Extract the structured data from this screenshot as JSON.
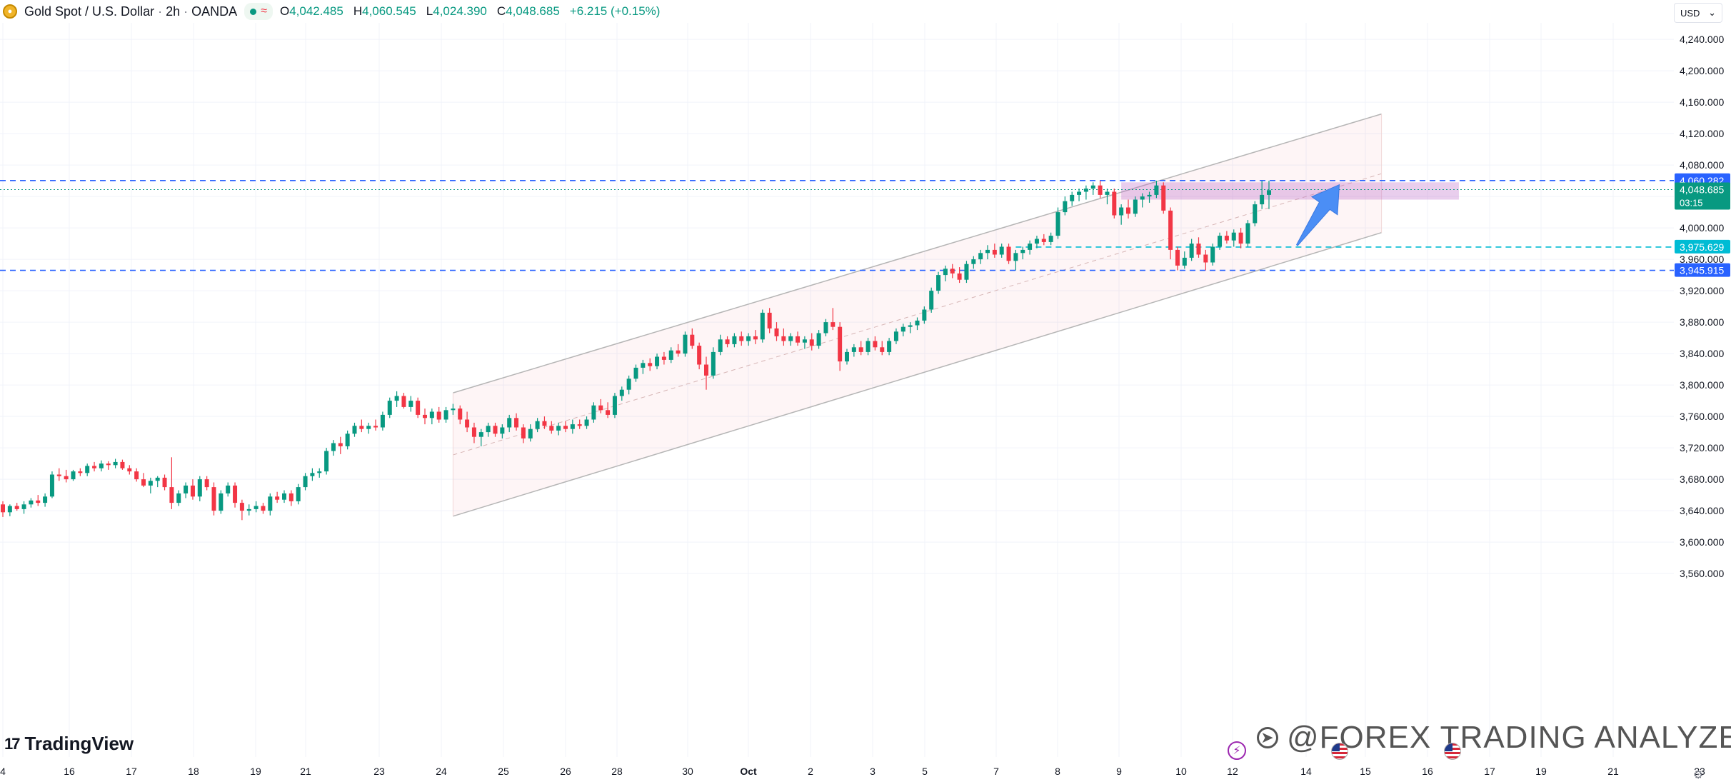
{
  "header": {
    "symbol": "Gold Spot / U.S. Dollar",
    "sep1": "/",
    "interval": "2h",
    "broker": "OANDA",
    "wave_glyph": "≈",
    "open_label": "O",
    "open": "4,042.485",
    "high_label": "H",
    "high": "4,060.545",
    "low_label": "L",
    "low": "4,024.390",
    "close_label": "C",
    "close": "4,048.685",
    "change": "+6.215 (+0.15%)"
  },
  "currency_selector": {
    "label": "USD",
    "icon": "chevron-down-icon"
  },
  "brand": {
    "name": "TradingView",
    "mark": "17"
  },
  "watermark": {
    "text": "@FOREX TRADING ANALYZERIZ",
    "icon": "telegram-icon"
  },
  "colors": {
    "up": "#089981",
    "down": "#f23645",
    "level_line": "#2962ff",
    "cyan_line": "#00bcd4",
    "zone": "#c68fe0",
    "channel": "#f6d0d0",
    "arrow": "#4b8ef5"
  },
  "chart_data": {
    "type": "candlestick",
    "title": "",
    "ylabel": "",
    "xlabel": "",
    "ylim": [
      3531,
      4269
    ],
    "y_ticks": [
      3560,
      3600,
      3640,
      3680,
      3720,
      3760,
      3800,
      3840,
      3880,
      3920,
      3960,
      4000,
      4040,
      4080,
      4120,
      4160,
      4200,
      4240
    ],
    "y_tick_labels": [
      "3,560.000",
      "3,600.000",
      "3,640.000",
      "3,680.000",
      "3,720.000",
      "3,760.000",
      "3,800.000",
      "3,840.000",
      "3,880.000",
      "3,920.000",
      "3,960.000",
      "4,000.000",
      "",
      "4,080.000",
      "4,120.000",
      "4,160.000",
      "4,200.000",
      "4,240.000"
    ],
    "x_axis_labels": [
      "4",
      "16",
      "17",
      "18",
      "19",
      "21",
      "23",
      "24",
      "25",
      "26",
      "28",
      "30",
      "Oct",
      "2",
      "3",
      "5",
      "7",
      "8",
      "9",
      "10",
      "12",
      "14",
      "15",
      "16",
      "17",
      "19",
      "21",
      "23"
    ],
    "grid": true,
    "legend": "none",
    "price_labels": [
      {
        "value": 4060.282,
        "text": "4,060.282",
        "color": "#2962ff"
      },
      {
        "value": 4048.685,
        "text": "4,048.685",
        "sub": "03:15",
        "color": "#089981"
      },
      {
        "value": 3975.629,
        "text": "3,975.629",
        "color": "#00bcd4"
      },
      {
        "value": 3945.915,
        "text": "3,945.915",
        "color": "#2962ff"
      }
    ],
    "horizontal_levels": [
      {
        "value": 4060.282,
        "style": "dashed",
        "color": "#2962ff"
      },
      {
        "value": 4048.685,
        "style": "dotted",
        "color": "#089981"
      },
      {
        "value": 3975.629,
        "style": "dashed",
        "color": "#00bcd4",
        "from_index": 144
      },
      {
        "value": 3945.915,
        "style": "dashed",
        "color": "#2962ff"
      }
    ],
    "channel": {
      "upper_start": [
        64,
        3790
      ],
      "upper_end": [
        196,
        4145
      ],
      "lower_start": [
        64,
        3633
      ],
      "lower_end": [
        196,
        3994
      ],
      "mid_start": [
        64,
        3711
      ],
      "mid_end": [
        196,
        4069
      ]
    },
    "resistance_zone": {
      "from_index": 159,
      "to_index": 207,
      "top": 4058,
      "bottom": 4036
    },
    "projection_arrow": {
      "from": [
        184,
        3978
      ],
      "to": [
        190,
        4055
      ]
    },
    "candles": [
      [
        3648,
        3652,
        3632,
        3638
      ],
      [
        3638,
        3648,
        3633,
        3646
      ],
      [
        3646,
        3650,
        3640,
        3642
      ],
      [
        3642,
        3652,
        3636,
        3648
      ],
      [
        3648,
        3656,
        3644,
        3653
      ],
      [
        3653,
        3660,
        3646,
        3650
      ],
      [
        3650,
        3662,
        3645,
        3658
      ],
      [
        3658,
        3690,
        3656,
        3686
      ],
      [
        3686,
        3694,
        3678,
        3684
      ],
      [
        3684,
        3692,
        3676,
        3680
      ],
      [
        3680,
        3692,
        3678,
        3690
      ],
      [
        3690,
        3694,
        3684,
        3688
      ],
      [
        3688,
        3700,
        3684,
        3697
      ],
      [
        3697,
        3702,
        3690,
        3694
      ],
      [
        3694,
        3704,
        3690,
        3700
      ],
      [
        3700,
        3703,
        3692,
        3698
      ],
      [
        3698,
        3706,
        3694,
        3702
      ],
      [
        3702,
        3705,
        3692,
        3694
      ],
      [
        3694,
        3698,
        3686,
        3690
      ],
      [
        3690,
        3694,
        3677,
        3680
      ],
      [
        3680,
        3688,
        3670,
        3672
      ],
      [
        3672,
        3682,
        3662,
        3678
      ],
      [
        3678,
        3684,
        3670,
        3682
      ],
      [
        3682,
        3686,
        3666,
        3670
      ],
      [
        3670,
        3708,
        3642,
        3650
      ],
      [
        3650,
        3666,
        3646,
        3662
      ],
      [
        3662,
        3676,
        3656,
        3672
      ],
      [
        3672,
        3680,
        3654,
        3658
      ],
      [
        3658,
        3684,
        3652,
        3680
      ],
      [
        3680,
        3684,
        3666,
        3670
      ],
      [
        3670,
        3676,
        3634,
        3640
      ],
      [
        3640,
        3666,
        3636,
        3662
      ],
      [
        3662,
        3676,
        3658,
        3672
      ],
      [
        3672,
        3676,
        3644,
        3650
      ],
      [
        3650,
        3654,
        3628,
        3640
      ],
      [
        3640,
        3648,
        3634,
        3642
      ],
      [
        3642,
        3652,
        3638,
        3646
      ],
      [
        3646,
        3650,
        3636,
        3640
      ],
      [
        3640,
        3662,
        3634,
        3658
      ],
      [
        3658,
        3664,
        3650,
        3654
      ],
      [
        3654,
        3666,
        3650,
        3662
      ],
      [
        3662,
        3666,
        3646,
        3652
      ],
      [
        3652,
        3674,
        3648,
        3670
      ],
      [
        3670,
        3688,
        3666,
        3684
      ],
      [
        3684,
        3694,
        3678,
        3688
      ],
      [
        3688,
        3694,
        3682,
        3690
      ],
      [
        3690,
        3720,
        3686,
        3716
      ],
      [
        3716,
        3730,
        3710,
        3726
      ],
      [
        3726,
        3734,
        3712,
        3722
      ],
      [
        3722,
        3742,
        3718,
        3738
      ],
      [
        3738,
        3752,
        3734,
        3748
      ],
      [
        3748,
        3756,
        3740,
        3744
      ],
      [
        3744,
        3752,
        3738,
        3748
      ],
      [
        3748,
        3756,
        3742,
        3746
      ],
      [
        3746,
        3766,
        3742,
        3762
      ],
      [
        3762,
        3784,
        3758,
        3780
      ],
      [
        3780,
        3792,
        3772,
        3786
      ],
      [
        3786,
        3790,
        3770,
        3772
      ],
      [
        3772,
        3786,
        3766,
        3780
      ],
      [
        3780,
        3784,
        3758,
        3762
      ],
      [
        3762,
        3770,
        3750,
        3758
      ],
      [
        3758,
        3770,
        3750,
        3766
      ],
      [
        3766,
        3772,
        3752,
        3756
      ],
      [
        3756,
        3772,
        3752,
        3768
      ],
      [
        3768,
        3776,
        3762,
        3770
      ],
      [
        3770,
        3774,
        3750,
        3756
      ],
      [
        3756,
        3766,
        3740,
        3746
      ],
      [
        3746,
        3752,
        3726,
        3734
      ],
      [
        3734,
        3744,
        3722,
        3740
      ],
      [
        3740,
        3752,
        3734,
        3748
      ],
      [
        3748,
        3752,
        3734,
        3738
      ],
      [
        3738,
        3750,
        3732,
        3746
      ],
      [
        3746,
        3762,
        3740,
        3758
      ],
      [
        3758,
        3764,
        3742,
        3746
      ],
      [
        3746,
        3750,
        3726,
        3732
      ],
      [
        3732,
        3750,
        3728,
        3744
      ],
      [
        3744,
        3758,
        3740,
        3754
      ],
      [
        3754,
        3760,
        3744,
        3748
      ],
      [
        3748,
        3754,
        3738,
        3742
      ],
      [
        3742,
        3752,
        3736,
        3748
      ],
      [
        3748,
        3754,
        3740,
        3744
      ],
      [
        3744,
        3756,
        3738,
        3750
      ],
      [
        3750,
        3756,
        3744,
        3748
      ],
      [
        3748,
        3760,
        3744,
        3756
      ],
      [
        3756,
        3778,
        3752,
        3774
      ],
      [
        3774,
        3782,
        3764,
        3768
      ],
      [
        3768,
        3778,
        3758,
        3762
      ],
      [
        3762,
        3790,
        3758,
        3786
      ],
      [
        3786,
        3798,
        3780,
        3794
      ],
      [
        3794,
        3812,
        3788,
        3808
      ],
      [
        3808,
        3826,
        3804,
        3822
      ],
      [
        3822,
        3832,
        3814,
        3828
      ],
      [
        3828,
        3834,
        3818,
        3824
      ],
      [
        3824,
        3840,
        3820,
        3836
      ],
      [
        3836,
        3842,
        3826,
        3832
      ],
      [
        3832,
        3848,
        3828,
        3844
      ],
      [
        3844,
        3852,
        3836,
        3840
      ],
      [
        3840,
        3868,
        3836,
        3864
      ],
      [
        3864,
        3872,
        3846,
        3850
      ],
      [
        3850,
        3854,
        3820,
        3826
      ],
      [
        3826,
        3836,
        3794,
        3812
      ],
      [
        3812,
        3848,
        3808,
        3842
      ],
      [
        3842,
        3864,
        3838,
        3858
      ],
      [
        3858,
        3862,
        3848,
        3852
      ],
      [
        3852,
        3866,
        3848,
        3862
      ],
      [
        3862,
        3868,
        3850,
        3856
      ],
      [
        3856,
        3866,
        3850,
        3862
      ],
      [
        3862,
        3870,
        3852,
        3858
      ],
      [
        3858,
        3896,
        3854,
        3892
      ],
      [
        3892,
        3898,
        3866,
        3872
      ],
      [
        3872,
        3880,
        3856,
        3862
      ],
      [
        3862,
        3872,
        3850,
        3856
      ],
      [
        3856,
        3866,
        3850,
        3862
      ],
      [
        3862,
        3868,
        3850,
        3854
      ],
      [
        3854,
        3862,
        3846,
        3858
      ],
      [
        3858,
        3866,
        3844,
        3850
      ],
      [
        3850,
        3870,
        3846,
        3866
      ],
      [
        3866,
        3884,
        3862,
        3880
      ],
      [
        3880,
        3898,
        3870,
        3874
      ],
      [
        3874,
        3880,
        3818,
        3830
      ],
      [
        3830,
        3846,
        3826,
        3842
      ],
      [
        3842,
        3852,
        3836,
        3848
      ],
      [
        3848,
        3856,
        3838,
        3842
      ],
      [
        3842,
        3860,
        3838,
        3856
      ],
      [
        3856,
        3862,
        3844,
        3848
      ],
      [
        3848,
        3856,
        3838,
        3842
      ],
      [
        3842,
        3860,
        3838,
        3856
      ],
      [
        3856,
        3872,
        3852,
        3868
      ],
      [
        3868,
        3878,
        3862,
        3874
      ],
      [
        3874,
        3880,
        3866,
        3876
      ],
      [
        3876,
        3886,
        3870,
        3882
      ],
      [
        3882,
        3900,
        3878,
        3896
      ],
      [
        3896,
        3924,
        3892,
        3920
      ],
      [
        3920,
        3944,
        3916,
        3940
      ],
      [
        3940,
        3952,
        3932,
        3948
      ],
      [
        3948,
        3954,
        3936,
        3942
      ],
      [
        3942,
        3950,
        3930,
        3934
      ],
      [
        3934,
        3958,
        3930,
        3954
      ],
      [
        3954,
        3964,
        3948,
        3960
      ],
      [
        3960,
        3972,
        3954,
        3968
      ],
      [
        3968,
        3978,
        3960,
        3972
      ],
      [
        3972,
        3980,
        3962,
        3966
      ],
      [
        3966,
        3980,
        3962,
        3976
      ],
      [
        3976,
        3980,
        3954,
        3958
      ],
      [
        3958,
        3972,
        3946,
        3968
      ],
      [
        3968,
        3976,
        3960,
        3972
      ],
      [
        3972,
        3984,
        3966,
        3980
      ],
      [
        3980,
        3990,
        3974,
        3986
      ],
      [
        3986,
        3992,
        3978,
        3982
      ],
      [
        3982,
        3994,
        3978,
        3990
      ],
      [
        3990,
        4026,
        3986,
        4020
      ],
      [
        4020,
        4040,
        4016,
        4034
      ],
      [
        4034,
        4046,
        4028,
        4042
      ],
      [
        4042,
        4050,
        4034,
        4046
      ],
      [
        4046,
        4054,
        4036,
        4050
      ],
      [
        4050,
        4058,
        4042,
        4054
      ],
      [
        4054,
        4060,
        4038,
        4042
      ],
      [
        4042,
        4050,
        4030,
        4046
      ],
      [
        4046,
        4050,
        4012,
        4016
      ],
      [
        4016,
        4030,
        4004,
        4026
      ],
      [
        4026,
        4036,
        4012,
        4018
      ],
      [
        4018,
        4040,
        4014,
        4036
      ],
      [
        4036,
        4044,
        4026,
        4040
      ],
      [
        4040,
        4046,
        4032,
        4042
      ],
      [
        4042,
        4060,
        4038,
        4054
      ],
      [
        4054,
        4058,
        4018,
        4022
      ],
      [
        4022,
        4026,
        3960,
        3972
      ],
      [
        3972,
        3976,
        3946,
        3952
      ],
      [
        3952,
        3970,
        3948,
        3962
      ],
      [
        3962,
        3986,
        3958,
        3980
      ],
      [
        3980,
        3988,
        3962,
        3966
      ],
      [
        3966,
        3972,
        3946,
        3956
      ],
      [
        3956,
        3980,
        3952,
        3976
      ],
      [
        3976,
        3994,
        3972,
        3990
      ],
      [
        3990,
        3996,
        3980,
        3984
      ],
      [
        3984,
        3998,
        3976,
        3994
      ],
      [
        3994,
        4000,
        3974,
        3980
      ],
      [
        3980,
        4010,
        3976,
        4006
      ],
      [
        4006,
        4034,
        4002,
        4030
      ],
      [
        4030,
        4060,
        4024,
        4042
      ],
      [
        4042,
        4060,
        4024,
        4048
      ]
    ]
  }
}
